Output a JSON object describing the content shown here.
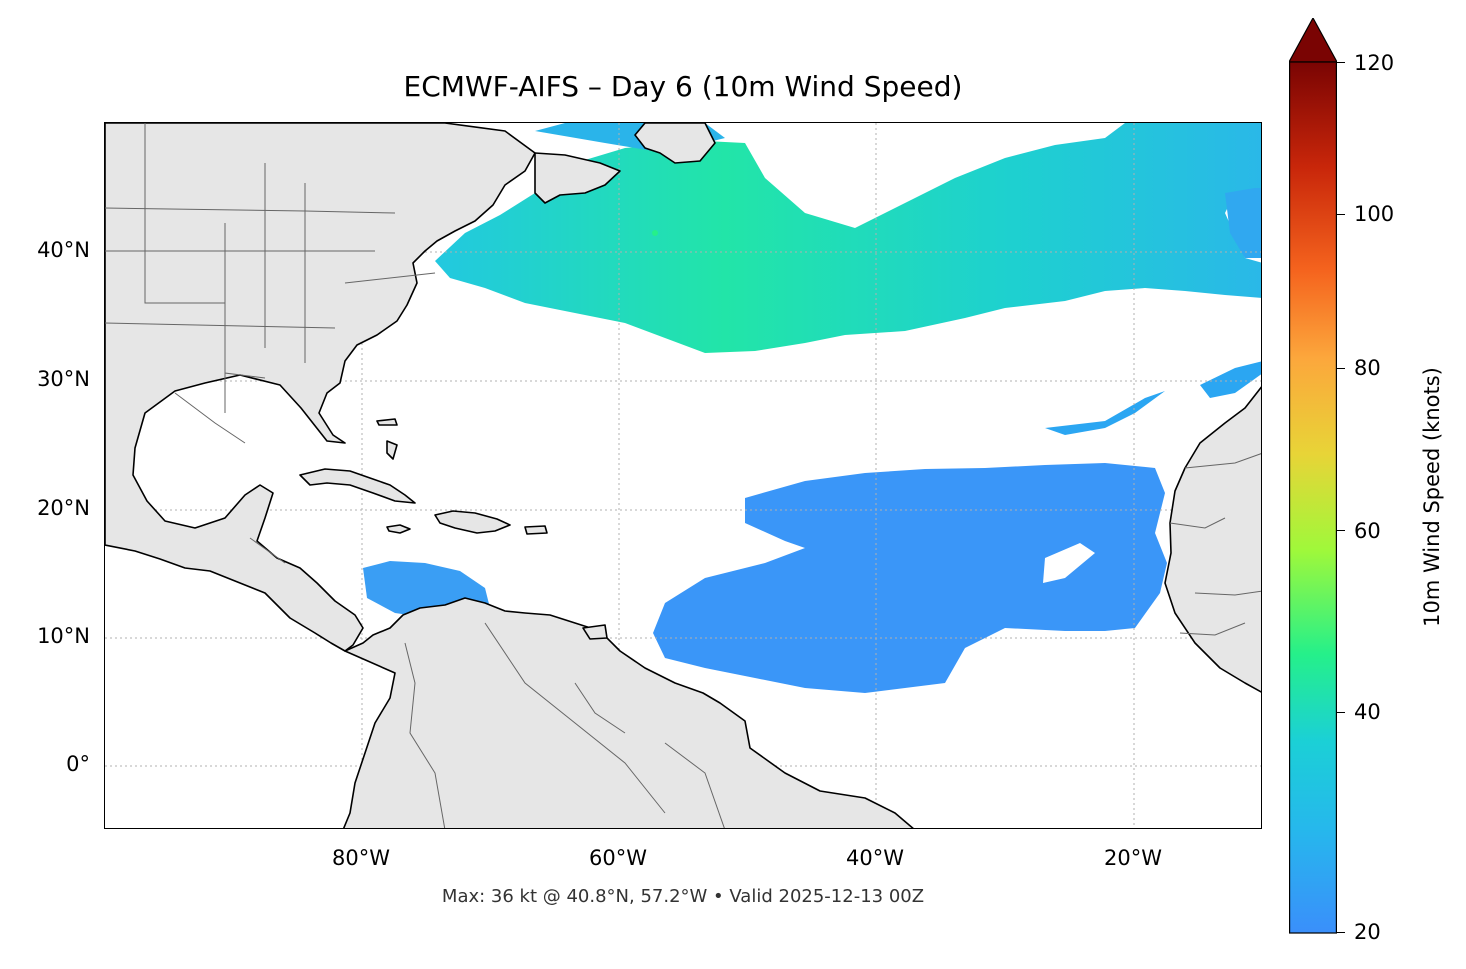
{
  "title": "ECMWF-AIFS – Day 6 (10m Wind Speed)",
  "footer": "Max: 36 kt @ 40.8°N, 57.2°W • Valid 2025-12-13 00Z",
  "map": {
    "lat_labels": [
      "40°N",
      "30°N",
      "20°N",
      "10°N",
      "0°"
    ],
    "lon_labels": [
      "80°W",
      "60°W",
      "40°W",
      "20°W"
    ],
    "land_color": "#e6e6e6",
    "coast_color": "#000000",
    "border_color": "#666666"
  },
  "colorbar": {
    "label": "10m Wind Speed (knots)",
    "ticks": [
      "120",
      "100",
      "80",
      "60",
      "40",
      "20"
    ],
    "colors": [
      "#4a3ee0",
      "#3a8ffb",
      "#1bd0d6",
      "#25f08a",
      "#a0f83a",
      "#e8d437",
      "#fca73c",
      "#f5641e",
      "#c8260a",
      "#7a0403"
    ]
  }
}
